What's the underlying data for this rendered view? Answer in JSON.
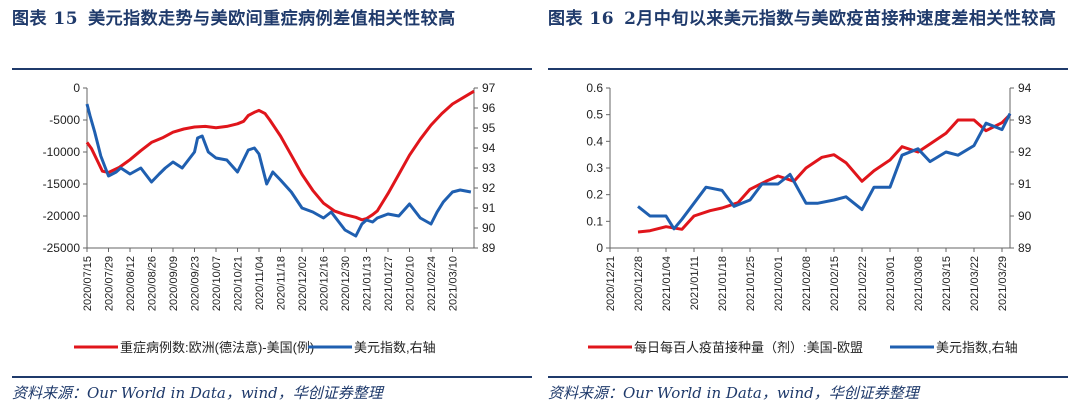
{
  "chart_data": [
    {
      "figure_label": "图表",
      "figure_number": "15",
      "title": "美元指数走势与美欧间重症病例差值相关性较高",
      "type": "line",
      "source": "资料来源：Our World in Data，wind，华创证券整理",
      "x_ticks": [
        "2020/07/15",
        "2020/07/29",
        "2020/08/12",
        "2020/08/26",
        "2020/09/09",
        "2020/09/23",
        "2020/10/07",
        "2020/10/21",
        "2020/11/04",
        "2020/11/18",
        "2020/12/02",
        "2020/12/16",
        "2020/12/30",
        "2021/01/13",
        "2021/01/27",
        "2021/02/10",
        "2021/02/24",
        "2021/03/10"
      ],
      "y_left": {
        "min": -25000,
        "max": 0,
        "ticks": [
          0,
          -5000,
          -10000,
          -15000,
          -20000,
          -25000
        ]
      },
      "y_right": {
        "min": 89,
        "max": 97,
        "ticks": [
          97,
          96,
          95,
          94,
          93,
          92,
          91,
          90,
          89
        ]
      },
      "legend_position": "bottom",
      "series": [
        {
          "name": "重症病例数:欧洲(德法意)-美国(例)",
          "axis": "left",
          "color": "#e0151b",
          "x": [
            "2020/07/15",
            "2020/07/18",
            "2020/07/22",
            "2020/07/25",
            "2020/07/29",
            "2020/08/05",
            "2020/08/12",
            "2020/08/19",
            "2020/08/26",
            "2020/09/02",
            "2020/09/09",
            "2020/09/16",
            "2020/09/23",
            "2020/09/30",
            "2020/10/07",
            "2020/10/14",
            "2020/10/21",
            "2020/10/25",
            "2020/10/28",
            "2020/11/01",
            "2020/11/04",
            "2020/11/08",
            "2020/11/11",
            "2020/11/18",
            "2020/11/25",
            "2020/12/02",
            "2020/12/09",
            "2020/12/16",
            "2020/12/23",
            "2020/12/30",
            "2021/01/06",
            "2021/01/10",
            "2021/01/13",
            "2021/01/17",
            "2021/01/20",
            "2021/01/27",
            "2021/02/03",
            "2021/02/10",
            "2021/02/17",
            "2021/02/24",
            "2021/03/03",
            "2021/03/10",
            "2021/03/17",
            "2021/03/24"
          ],
          "values": [
            -8500,
            -9500,
            -11500,
            -13000,
            -13200,
            -12400,
            -11200,
            -9800,
            -8500,
            -7800,
            -6900,
            -6400,
            -6100,
            -6000,
            -6200,
            -6000,
            -5600,
            -5200,
            -4300,
            -3800,
            -3500,
            -4000,
            -5000,
            -7500,
            -10500,
            -13500,
            -16000,
            -18000,
            -19200,
            -19800,
            -20200,
            -20600,
            -20400,
            -19800,
            -19200,
            -16500,
            -13500,
            -10500,
            -8000,
            -5800,
            -4000,
            -2500,
            -1500,
            -500
          ]
        },
        {
          "name": "美元指数,右轴",
          "axis": "right",
          "color": "#1f5fb0",
          "x": [
            "2020/07/15",
            "2020/07/17",
            "2020/07/20",
            "2020/07/24",
            "2020/07/27",
            "2020/07/29",
            "2020/08/03",
            "2020/08/06",
            "2020/08/12",
            "2020/08/19",
            "2020/08/26",
            "2020/08/31",
            "2020/09/04",
            "2020/09/09",
            "2020/09/15",
            "2020/09/23",
            "2020/09/25",
            "2020/09/28",
            "2020/10/02",
            "2020/10/07",
            "2020/10/14",
            "2020/10/21",
            "2020/10/28",
            "2020/11/01",
            "2020/11/04",
            "2020/11/09",
            "2020/11/13",
            "2020/11/18",
            "2020/11/25",
            "2020/12/02",
            "2020/12/09",
            "2020/12/16",
            "2020/12/21",
            "2020/12/30",
            "2021/01/06",
            "2021/01/10",
            "2021/01/13",
            "2021/01/17",
            "2021/01/20",
            "2021/01/27",
            "2021/02/03",
            "2021/02/10",
            "2021/02/17",
            "2021/02/24",
            "2021/02/28",
            "2021/03/04",
            "2021/03/10",
            "2021/03/15",
            "2021/03/22"
          ],
          "values": [
            96.2,
            95.6,
            94.8,
            93.6,
            93.0,
            92.6,
            92.8,
            93.0,
            92.7,
            93.0,
            92.3,
            92.7,
            93.0,
            93.3,
            93.0,
            93.8,
            94.5,
            94.6,
            93.8,
            93.5,
            93.4,
            92.8,
            93.9,
            94.0,
            93.7,
            92.2,
            92.8,
            92.4,
            91.8,
            91.0,
            90.8,
            90.5,
            90.8,
            89.9,
            89.6,
            90.2,
            90.4,
            90.3,
            90.5,
            90.7,
            90.6,
            91.2,
            90.5,
            90.2,
            90.8,
            91.3,
            91.8,
            91.9,
            91.8
          ]
        }
      ]
    },
    {
      "figure_label": "图表",
      "figure_number": "16",
      "title": "2月中旬以来美元指数与美欧疫苗接种速度差相关性较高",
      "type": "line",
      "source": "资料来源：Our World in Data，wind，华创证券整理",
      "x_ticks": [
        "2020/12/21",
        "2020/12/28",
        "2021/01/04",
        "2021/01/11",
        "2021/01/18",
        "2021/01/25",
        "2021/02/01",
        "2021/02/08",
        "2021/02/15",
        "2021/02/22",
        "2021/03/01",
        "2021/03/08",
        "2021/03/15",
        "2021/03/22",
        "2021/03/29"
      ],
      "y_left": {
        "min": 0,
        "max": 0.6,
        "ticks": [
          0.6,
          0.5,
          0.4,
          0.3,
          0.2,
          0.1,
          0
        ]
      },
      "y_right": {
        "min": 89,
        "max": 94,
        "ticks": [
          94,
          93,
          92,
          91,
          90,
          89
        ]
      },
      "legend_position": "bottom",
      "series": [
        {
          "name": "每日每百人疫苗接种量（剂）:美国-欧盟",
          "axis": "left",
          "color": "#e0151b",
          "x": [
            "2020/12/28",
            "2020/12/31",
            "2021/01/04",
            "2021/01/08",
            "2021/01/11",
            "2021/01/15",
            "2021/01/18",
            "2021/01/22",
            "2021/01/25",
            "2021/01/29",
            "2021/02/01",
            "2021/02/05",
            "2021/02/08",
            "2021/02/12",
            "2021/02/15",
            "2021/02/18",
            "2021/02/22",
            "2021/02/25",
            "2021/03/01",
            "2021/03/04",
            "2021/03/08",
            "2021/03/11",
            "2021/03/15",
            "2021/03/18",
            "2021/03/22",
            "2021/03/25",
            "2021/03/29",
            "2021/03/31"
          ],
          "values": [
            0.06,
            0.065,
            0.08,
            0.07,
            0.12,
            0.14,
            0.15,
            0.17,
            0.22,
            0.25,
            0.27,
            0.25,
            0.3,
            0.34,
            0.35,
            0.32,
            0.25,
            0.29,
            0.33,
            0.38,
            0.36,
            0.39,
            0.43,
            0.48,
            0.48,
            0.44,
            0.47,
            0.5
          ]
        },
        {
          "name": "美元指数,右轴",
          "axis": "right",
          "color": "#1f5fb0",
          "x": [
            "2020/12/28",
            "2020/12/31",
            "2021/01/04",
            "2021/01/06",
            "2021/01/08",
            "2021/01/11",
            "2021/01/14",
            "2021/01/18",
            "2021/01/21",
            "2021/01/25",
            "2021/01/28",
            "2021/02/01",
            "2021/02/04",
            "2021/02/08",
            "2021/02/11",
            "2021/02/15",
            "2021/02/18",
            "2021/02/22",
            "2021/02/25",
            "2021/03/01",
            "2021/03/04",
            "2021/03/08",
            "2021/03/11",
            "2021/03/15",
            "2021/03/18",
            "2021/03/22",
            "2021/03/25",
            "2021/03/29",
            "2021/03/31"
          ],
          "values": [
            90.3,
            90.0,
            90.0,
            89.6,
            89.9,
            90.4,
            90.9,
            90.8,
            90.3,
            90.5,
            91.0,
            91.0,
            91.3,
            90.4,
            90.4,
            90.5,
            90.6,
            90.2,
            90.9,
            90.9,
            91.9,
            92.1,
            91.7,
            92.0,
            91.9,
            92.2,
            92.9,
            92.7,
            93.2
          ]
        }
      ]
    }
  ]
}
